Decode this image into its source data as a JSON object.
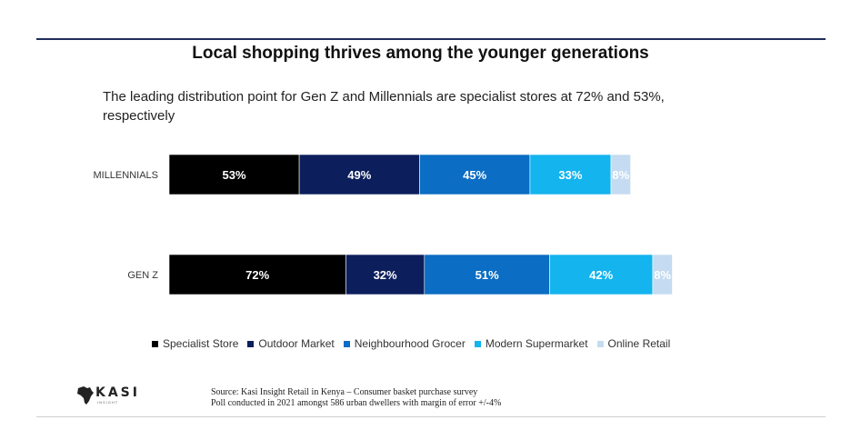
{
  "header": {
    "title": "Local shopping thrives among the younger generations",
    "subtitle": "The leading distribution point for Gen Z and Millennials are specialist stores at 72% and 53%, respectively"
  },
  "chart_data": {
    "type": "bar",
    "orientation": "horizontal",
    "stacked": true,
    "categories": [
      "MILLENNIALS",
      "GEN Z"
    ],
    "series": [
      {
        "name": "Specialist Store",
        "color": "#000000",
        "values": [
          53,
          72
        ]
      },
      {
        "name": "Outdoor Market",
        "color": "#0c1f5c",
        "values": [
          49,
          32
        ]
      },
      {
        "name": "Neighbourhood Grocer",
        "color": "#0b6dc3",
        "values": [
          45,
          51
        ]
      },
      {
        "name": "Modern Supermarket",
        "color": "#14b4ee",
        "values": [
          33,
          42
        ]
      },
      {
        "name": "Online Retail",
        "color": "#c5dbf1",
        "values": [
          8,
          8
        ]
      }
    ],
    "value_suffix": "%",
    "legend_position": "bottom"
  },
  "footer": {
    "logo_text": "KASI",
    "logo_sub": "INSIGHT",
    "source_line1": "Source: Kasi Insight Retail in Kenya – Consumer basket purchase survey",
    "source_line2": "Poll conducted in 2021 amongst 586 urban dwellers with margin of error +/-4%"
  }
}
